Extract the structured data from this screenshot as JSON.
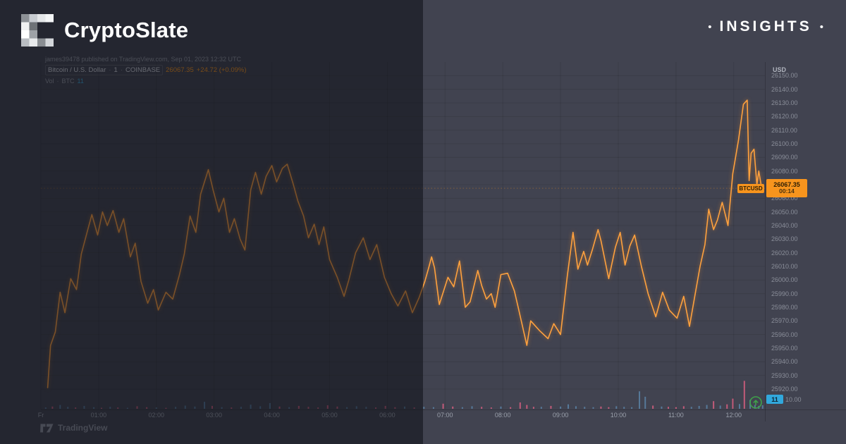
{
  "header": {
    "brand": "CryptoSlate",
    "badge": {
      "dot": "•",
      "label": "INSIGHTS"
    }
  },
  "legend": {
    "publisher_line": "james39478 published on TradingView.com, Sep 01, 2023 12:32 UTC",
    "symbol": "Bitcoin / U.S. Dollar",
    "separator": "·",
    "interval": "1",
    "exchange": "COINBASE",
    "price": "26067.35",
    "change": "+24.72 (+0.09%)",
    "vol_label": "Vol",
    "vol_unit": "BTC",
    "vol_value": "11"
  },
  "price_axis": {
    "currency": "USD",
    "label_price": "26067.35",
    "countdown": "00:14",
    "symbol_tag": "BTCUSD",
    "volume_badge": "11",
    "partial_tick": "10.00"
  },
  "attribution": {
    "name": "TradingView"
  },
  "colors": {
    "background": "#414350",
    "overlay": "rgba(13,14,22,0.55)",
    "line": "#ffa13e",
    "accent_orange": "#f7941d",
    "grid": "rgba(0,0,0,0.10)",
    "axis_border": "rgba(0,0,0,0.20)",
    "volume_up": "#5b82a6",
    "volume_down": "#d95f80",
    "badge_blue": "#31a8dc",
    "button_green": "#3fa24a",
    "text_white": "#ffffff"
  },
  "chart_data": {
    "type": "line",
    "title": "Bitcoin / U.S. Dollar, 1, COINBASE",
    "x_unit": "minutes since 2023-09-01 00:00 UTC",
    "xlim": [
      0,
      752
    ],
    "ylim": [
      25905,
      26160
    ],
    "grid": true,
    "legend_position": "top-left",
    "last_price": 26067.35,
    "x_ticks": [
      {
        "label": "Fr",
        "t": 0
      },
      {
        "label": "01:00",
        "t": 60
      },
      {
        "label": "02:00",
        "t": 120
      },
      {
        "label": "03:00",
        "t": 180
      },
      {
        "label": "04:00",
        "t": 240
      },
      {
        "label": "05:00",
        "t": 300
      },
      {
        "label": "06:00",
        "t": 360
      },
      {
        "label": "07:00",
        "t": 420
      },
      {
        "label": "08:00",
        "t": 480
      },
      {
        "label": "09:00",
        "t": 540
      },
      {
        "label": "10:00",
        "t": 600
      },
      {
        "label": "11:00",
        "t": 660
      },
      {
        "label": "12:00",
        "t": 720
      }
    ],
    "y_ticks": [
      26150,
      26140,
      26130,
      26120,
      26110,
      26100,
      26090,
      26080,
      26070,
      26060,
      26050,
      26040,
      26030,
      26020,
      26010,
      26000,
      25990,
      25980,
      25970,
      25960,
      25950,
      25940,
      25930,
      25920
    ],
    "series": [
      {
        "name": "BTCUSD price",
        "points": [
          [
            7,
            25921
          ],
          [
            10,
            25952
          ],
          [
            15,
            25962
          ],
          [
            20,
            25991
          ],
          [
            25,
            25976
          ],
          [
            31,
            26001
          ],
          [
            37,
            25993
          ],
          [
            42,
            26019
          ],
          [
            48,
            26035
          ],
          [
            53,
            26048
          ],
          [
            59,
            26033
          ],
          [
            64,
            26050
          ],
          [
            69,
            26040
          ],
          [
            75,
            26051
          ],
          [
            81,
            26035
          ],
          [
            86,
            26045
          ],
          [
            93,
            26017
          ],
          [
            98,
            26027
          ],
          [
            104,
            25999
          ],
          [
            111,
            25983
          ],
          [
            117,
            25993
          ],
          [
            122,
            25978
          ],
          [
            130,
            25991
          ],
          [
            137,
            25986
          ],
          [
            144,
            26004
          ],
          [
            149,
            26019
          ],
          [
            155,
            26047
          ],
          [
            161,
            26035
          ],
          [
            166,
            26063
          ],
          [
            174,
            26081
          ],
          [
            179,
            26066
          ],
          [
            185,
            26050
          ],
          [
            190,
            26060
          ],
          [
            196,
            26035
          ],
          [
            201,
            26045
          ],
          [
            207,
            26030
          ],
          [
            212,
            26022
          ],
          [
            218,
            26066
          ],
          [
            223,
            26079
          ],
          [
            229,
            26063
          ],
          [
            234,
            26076
          ],
          [
            240,
            26084
          ],
          [
            245,
            26072
          ],
          [
            251,
            26082
          ],
          [
            256,
            26085
          ],
          [
            262,
            26071
          ],
          [
            267,
            26058
          ],
          [
            273,
            26047
          ],
          [
            278,
            26031
          ],
          [
            284,
            26041
          ],
          [
            289,
            26026
          ],
          [
            294,
            26039
          ],
          [
            300,
            26015
          ],
          [
            308,
            26002
          ],
          [
            315,
            25988
          ],
          [
            320,
            26000
          ],
          [
            327,
            26020
          ],
          [
            335,
            26031
          ],
          [
            342,
            26015
          ],
          [
            349,
            26026
          ],
          [
            357,
            26002
          ],
          [
            364,
            25990
          ],
          [
            371,
            25981
          ],
          [
            379,
            25992
          ],
          [
            386,
            25976
          ],
          [
            393,
            25987
          ],
          [
            399,
            25999
          ],
          [
            403,
            26009
          ],
          [
            406,
            26017
          ],
          [
            409,
            26009
          ],
          [
            414,
            25982
          ],
          [
            423,
            26002
          ],
          [
            429,
            25995
          ],
          [
            435,
            26014
          ],
          [
            441,
            25980
          ],
          [
            446,
            25984
          ],
          [
            454,
            26007
          ],
          [
            458,
            25996
          ],
          [
            463,
            25986
          ],
          [
            468,
            25990
          ],
          [
            472,
            25980
          ],
          [
            478,
            26004
          ],
          [
            485,
            26005
          ],
          [
            492,
            25992
          ],
          [
            496,
            25980
          ],
          [
            505,
            25952
          ],
          [
            509,
            25970
          ],
          [
            518,
            25963
          ],
          [
            527,
            25957
          ],
          [
            533,
            25968
          ],
          [
            540,
            25960
          ],
          [
            547,
            26003
          ],
          [
            553,
            26035
          ],
          [
            558,
            26008
          ],
          [
            564,
            26021
          ],
          [
            568,
            26011
          ],
          [
            573,
            26022
          ],
          [
            579,
            26037
          ],
          [
            582,
            26029
          ],
          [
            590,
            26001
          ],
          [
            597,
            26024
          ],
          [
            602,
            26035
          ],
          [
            607,
            26011
          ],
          [
            612,
            26025
          ],
          [
            617,
            26033
          ],
          [
            624,
            26010
          ],
          [
            631,
            25990
          ],
          [
            639,
            25973
          ],
          [
            646,
            25991
          ],
          [
            653,
            25978
          ],
          [
            661,
            25972
          ],
          [
            668,
            25988
          ],
          [
            674,
            25966
          ],
          [
            679,
            25986
          ],
          [
            685,
            26010
          ],
          [
            690,
            26026
          ],
          [
            694,
            26052
          ],
          [
            699,
            26037
          ],
          [
            703,
            26044
          ],
          [
            708,
            26057
          ],
          [
            714,
            26040
          ],
          [
            719,
            26078
          ],
          [
            725,
            26103
          ],
          [
            730,
            26129
          ],
          [
            734,
            26132
          ],
          [
            736,
            26073
          ],
          [
            738,
            26093
          ],
          [
            741,
            26096
          ],
          [
            744,
            26070
          ],
          [
            746,
            26080
          ],
          [
            749,
            26067.35
          ]
        ]
      }
    ],
    "volume": {
      "name": "Vol · BTC",
      "last_value": 11,
      "bars": [
        [
          5,
          4,
          "u"
        ],
        [
          12,
          7,
          "d"
        ],
        [
          20,
          12,
          "u"
        ],
        [
          28,
          6,
          "u"
        ],
        [
          36,
          4,
          "d"
        ],
        [
          45,
          9,
          "u"
        ],
        [
          55,
          5,
          "u"
        ],
        [
          63,
          3,
          "d"
        ],
        [
          72,
          6,
          "u"
        ],
        [
          80,
          4,
          "d"
        ],
        [
          90,
          3,
          "u"
        ],
        [
          100,
          8,
          "d"
        ],
        [
          110,
          5,
          "d"
        ],
        [
          120,
          4,
          "u"
        ],
        [
          130,
          3,
          "d"
        ],
        [
          140,
          6,
          "u"
        ],
        [
          150,
          10,
          "u"
        ],
        [
          160,
          7,
          "u"
        ],
        [
          170,
          22,
          "u"
        ],
        [
          178,
          9,
          "d"
        ],
        [
          188,
          5,
          "u"
        ],
        [
          198,
          4,
          "d"
        ],
        [
          208,
          6,
          "u"
        ],
        [
          218,
          13,
          "u"
        ],
        [
          228,
          8,
          "u"
        ],
        [
          238,
          18,
          "u"
        ],
        [
          248,
          7,
          "d"
        ],
        [
          258,
          5,
          "u"
        ],
        [
          268,
          9,
          "d"
        ],
        [
          278,
          6,
          "d"
        ],
        [
          288,
          4,
          "d"
        ],
        [
          298,
          11,
          "d"
        ],
        [
          308,
          7,
          "d"
        ],
        [
          318,
          5,
          "u"
        ],
        [
          328,
          8,
          "u"
        ],
        [
          338,
          6,
          "u"
        ],
        [
          348,
          4,
          "d"
        ],
        [
          358,
          9,
          "d"
        ],
        [
          368,
          5,
          "d"
        ],
        [
          378,
          7,
          "u"
        ],
        [
          388,
          4,
          "d"
        ],
        [
          398,
          6,
          "u"
        ],
        [
          408,
          5,
          "u"
        ],
        [
          418,
          16,
          "d"
        ],
        [
          428,
          7,
          "d"
        ],
        [
          438,
          5,
          "u"
        ],
        [
          448,
          8,
          "u"
        ],
        [
          458,
          6,
          "d"
        ],
        [
          468,
          4,
          "d"
        ],
        [
          478,
          7,
          "u"
        ],
        [
          488,
          5,
          "d"
        ],
        [
          498,
          20,
          "d"
        ],
        [
          505,
          12,
          "d"
        ],
        [
          512,
          6,
          "d"
        ],
        [
          520,
          6,
          "u"
        ],
        [
          530,
          9,
          "d"
        ],
        [
          540,
          7,
          "u"
        ],
        [
          548,
          14,
          "u"
        ],
        [
          556,
          8,
          "u"
        ],
        [
          565,
          6,
          "u"
        ],
        [
          574,
          5,
          "u"
        ],
        [
          582,
          7,
          "d"
        ],
        [
          590,
          5,
          "d"
        ],
        [
          598,
          8,
          "u"
        ],
        [
          606,
          6,
          "u"
        ],
        [
          614,
          5,
          "u"
        ],
        [
          622,
          55,
          "u"
        ],
        [
          628,
          38,
          "u"
        ],
        [
          636,
          10,
          "d"
        ],
        [
          645,
          7,
          "u"
        ],
        [
          652,
          6,
          "d"
        ],
        [
          660,
          5,
          "d"
        ],
        [
          668,
          8,
          "d"
        ],
        [
          676,
          6,
          "u"
        ],
        [
          684,
          9,
          "u"
        ],
        [
          692,
          12,
          "u"
        ],
        [
          699,
          24,
          "d"
        ],
        [
          706,
          10,
          "u"
        ],
        [
          713,
          14,
          "d"
        ],
        [
          719,
          32,
          "d"
        ],
        [
          726,
          15,
          "u"
        ],
        [
          731,
          88,
          "d"
        ],
        [
          737,
          28,
          "u"
        ],
        [
          742,
          12,
          "u"
        ],
        [
          746,
          9,
          "u"
        ],
        [
          750,
          11,
          "u"
        ]
      ]
    }
  }
}
